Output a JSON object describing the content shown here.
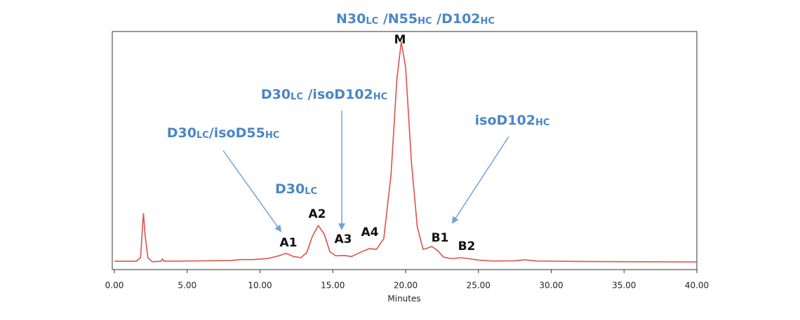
{
  "chart_data": {
    "type": "line",
    "xlabel": "Minutes",
    "xlim": [
      0,
      40
    ],
    "ylim": [
      0,
      100
    ],
    "xticks": [
      {
        "value": 0,
        "label": "0.00"
      },
      {
        "value": 5,
        "label": "5.00"
      },
      {
        "value": 10,
        "label": "10.00"
      },
      {
        "value": 15,
        "label": "15.00"
      },
      {
        "value": 20,
        "label": "20.00"
      },
      {
        "value": 25,
        "label": "25.00"
      },
      {
        "value": 30,
        "label": "30.00"
      },
      {
        "value": 35,
        "label": "35.00"
      },
      {
        "value": 40,
        "label": "40.00"
      }
    ],
    "series": [
      {
        "color": "#e0504a",
        "x": [
          0,
          1.5,
          1.8,
          1.95,
          2.0,
          2.1,
          2.3,
          2.6,
          3.2,
          3.3,
          3.4,
          5,
          8,
          8.7,
          9.5,
          10.5,
          11.3,
          11.8,
          12.3,
          12.8,
          13.2,
          13.6,
          14.0,
          14.4,
          14.8,
          15.2,
          15.8,
          16.3,
          16.8,
          17.5,
          18.0,
          18.5,
          19.0,
          19.4,
          19.7,
          20.0,
          20.4,
          20.8,
          21.2,
          21.5,
          21.8,
          22.2,
          22.6,
          23.2,
          23.8,
          24.3,
          25,
          26,
          27.5,
          28.2,
          29,
          32,
          40
        ],
        "values": [
          3.5,
          3.5,
          5,
          20,
          23.5,
          15,
          5,
          3.3,
          3.5,
          4.5,
          3.5,
          3.6,
          3.8,
          4.2,
          4.2,
          4.6,
          5.8,
          6.8,
          5.5,
          5.0,
          7,
          14,
          18.5,
          15,
          7.5,
          5.8,
          5.9,
          5.5,
          7,
          8.8,
          8.5,
          13,
          40,
          80,
          95.6,
          85,
          45,
          18,
          8.5,
          9,
          9.7,
          8,
          5.2,
          4.6,
          5.0,
          4.6,
          4,
          3.6,
          3.7,
          4.1,
          3.6,
          3.4,
          3.2
        ]
      }
    ],
    "peak_labels": [
      "M",
      "A1",
      "A2",
      "A3",
      "A4",
      "B1",
      "B2"
    ],
    "annotations": [
      {
        "parts": [
          "N30",
          "LC",
          " /N55",
          "HC",
          " /D102",
          "HC"
        ]
      },
      {
        "parts": [
          "D30",
          "LC",
          " /isoD102",
          "HC"
        ]
      },
      {
        "parts": [
          "D30",
          "LC",
          "/isoD55",
          "HC"
        ]
      },
      {
        "parts": [
          "D30",
          "LC"
        ]
      },
      {
        "parts": [
          "isoD102",
          "HC"
        ]
      }
    ]
  }
}
